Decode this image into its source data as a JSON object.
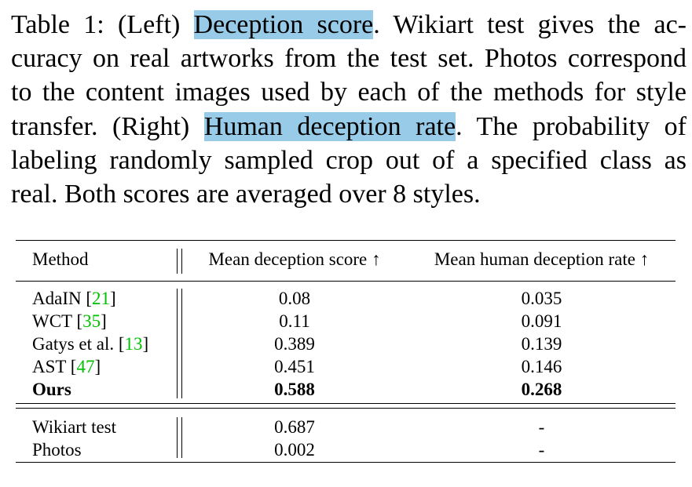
{
  "caption": {
    "lines": [
      [
        "Table 1: (Left) ",
        "Deception score",
        ". Wikiart test gives the ac-"
      ],
      [
        "curacy on real artworks from the test set. Photos correspond"
      ],
      [
        "to the content images used by each of the methods for style"
      ],
      [
        "transfer. (Right) ",
        "Human deception rate",
        ". The probability of"
      ],
      [
        "labeling randomly sampled crop out of a specified class as"
      ],
      [
        "real. Both scores are averaged over 8 styles."
      ]
    ]
  },
  "table": {
    "headers": {
      "method": "Method",
      "score": "Mean deception score ↑",
      "rate": "Mean human deception rate ↑"
    },
    "rows": [
      {
        "method": "AdaIN ",
        "bracket_open": "[",
        "ref": "21",
        "bracket_close": "]",
        "score": "0.08",
        "rate": "0.035"
      },
      {
        "method": "WCT ",
        "bracket_open": "[",
        "ref": "35",
        "bracket_close": "]",
        "score": "0.11",
        "rate": "0.091"
      },
      {
        "method": "Gatys et al. ",
        "bracket_open": "[",
        "ref": "13",
        "bracket_close": "]",
        "score": "0.389",
        "rate": "0.139"
      },
      {
        "method": "AST ",
        "bracket_open": "[",
        "ref": "47",
        "bracket_close": "]",
        "score": "0.451",
        "rate": "0.146"
      },
      {
        "method": "Ours",
        "score": "0.588",
        "rate": "0.268"
      }
    ],
    "reference_rows": [
      {
        "method": "Wikiart test",
        "score": "0.687",
        "rate": "-"
      },
      {
        "method": "Photos",
        "score": "0.002",
        "rate": "-"
      }
    ],
    "colors": {
      "highlight": "#97cbe8",
      "citation": "#00c000"
    }
  }
}
